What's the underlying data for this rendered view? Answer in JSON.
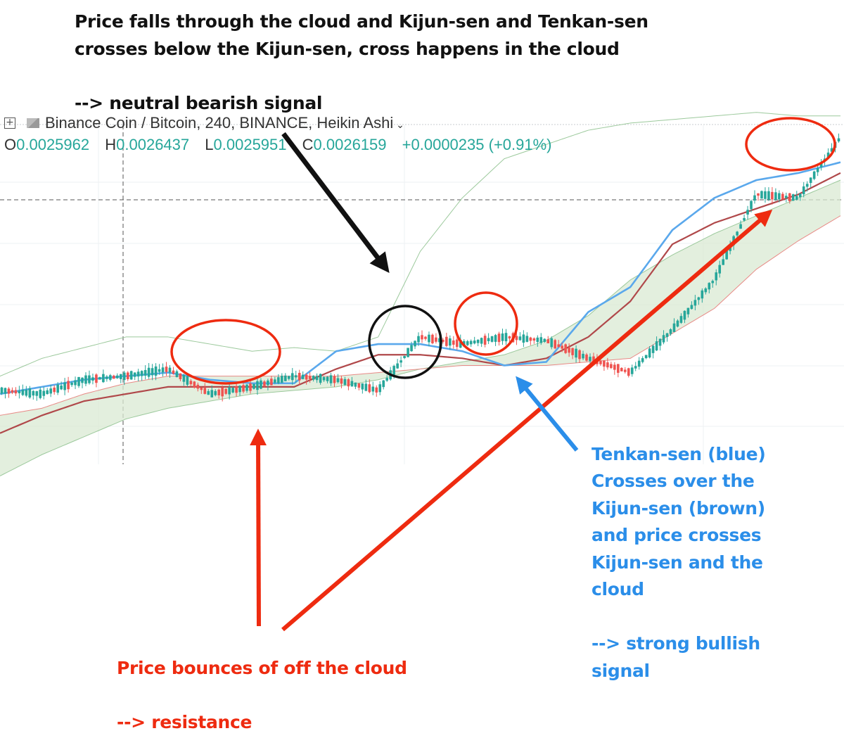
{
  "annotations": {
    "top_line1": "Price falls through the cloud and Kijun-sen and Tenkan-sen",
    "top_line2": "crosses below the Kijun-sen, cross happens in the cloud",
    "top_signal": "--> neutral bearish signal",
    "right_lines": [
      "Tenkan-sen (blue)",
      "Crosses over the",
      "Kijun-sen (brown)",
      "and price crosses",
      "Kijun-sen and the",
      "cloud"
    ],
    "right_signal_line1": "--> strong bullish",
    "right_signal_line2": "signal",
    "bottom_line": "Price bounces of off the cloud",
    "bottom_signal": "--> resistance"
  },
  "header": {
    "symbol_title": "Binance Coin / Bitcoin, 240, BINANCE, Heikin Ashi",
    "o_label": "O",
    "o_value": "0.0025962",
    "h_label": "H",
    "h_value": "0.0026437",
    "l_label": "L",
    "l_value": "0.0025951",
    "c_label": "C",
    "c_value": "0.0026159",
    "change": "+0.0000235 (+0.91%)"
  },
  "colors": {
    "bull_candle": "#26a69a",
    "bear_candle": "#ef5350",
    "tenkan": "#5aa8ec",
    "kijun": "#b0484a",
    "cloud_fill": "#d9ead3",
    "span_green": "#9cc99c",
    "span_red": "#e88a86",
    "black_ink": "#111111",
    "red_ink": "#ee2b10",
    "blue_ink": "#2b8ee9"
  },
  "chart_data": {
    "type": "candlestick",
    "x": [
      0,
      5,
      10,
      15,
      20,
      25,
      30,
      35,
      40,
      45,
      50,
      55,
      60,
      65,
      70,
      75,
      80,
      85,
      90,
      95,
      100
    ],
    "price": [
      0.51,
      0.5,
      0.54,
      0.55,
      0.57,
      0.5,
      0.52,
      0.55,
      0.54,
      0.51,
      0.66,
      0.64,
      0.66,
      0.65,
      0.6,
      0.56,
      0.68,
      0.82,
      1.06,
      1.05,
      1.22
    ],
    "tenkan": [
      0.5,
      0.52,
      0.54,
      0.55,
      0.56,
      0.54,
      0.53,
      0.53,
      0.62,
      0.64,
      0.64,
      0.62,
      0.58,
      0.59,
      0.73,
      0.8,
      0.96,
      1.05,
      1.1,
      1.12,
      1.15
    ],
    "kijun": [
      0.39,
      0.44,
      0.48,
      0.5,
      0.52,
      0.52,
      0.52,
      0.52,
      0.57,
      0.61,
      0.61,
      0.6,
      0.58,
      0.6,
      0.66,
      0.76,
      0.92,
      0.98,
      1.02,
      1.06,
      1.12
    ],
    "span_a": [
      0.27,
      0.33,
      0.38,
      0.43,
      0.46,
      0.48,
      0.5,
      0.51,
      0.52,
      0.54,
      0.57,
      0.59,
      0.61,
      0.65,
      0.72,
      0.82,
      0.89,
      0.95,
      1.0,
      1.05,
      1.1
    ],
    "span_b": [
      0.44,
      0.46,
      0.5,
      0.53,
      0.55,
      0.55,
      0.55,
      0.55,
      0.55,
      0.56,
      0.57,
      0.58,
      0.58,
      0.58,
      0.59,
      0.6,
      0.67,
      0.74,
      0.85,
      0.93,
      1.0
    ],
    "chikou": [
      0.55,
      0.6,
      0.63,
      0.66,
      0.66,
      0.64,
      0.62,
      0.63,
      0.62,
      0.66,
      0.9,
      1.05,
      1.16,
      1.2,
      1.24,
      1.26,
      1.27,
      1.28,
      1.29,
      1.28,
      1.28
    ]
  }
}
